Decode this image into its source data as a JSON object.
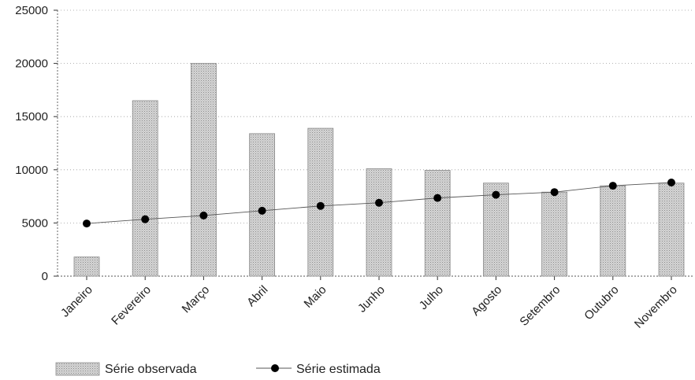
{
  "chart_data": {
    "type": "bar",
    "categories": [
      "Janeiro",
      "Fevereiro",
      "Março",
      "Abril",
      "Maio",
      "Junho",
      "Julho",
      "Agosto",
      "Setembro",
      "Outubro",
      "Novembro"
    ],
    "series": [
      {
        "name": "Série observada",
        "type": "bar",
        "color": "#c8c8c8",
        "values": [
          1800,
          16500,
          20000,
          13400,
          13900,
          10100,
          9950,
          8750,
          7900,
          8500,
          8750
        ]
      },
      {
        "name": "Série estimada",
        "type": "line",
        "color": "#000000",
        "values": [
          4950,
          5350,
          5700,
          6150,
          6600,
          6900,
          7350,
          7650,
          7900,
          8500,
          8800
        ]
      }
    ],
    "title": "",
    "xlabel": "",
    "ylabel": "",
    "ylim": [
      0,
      25000
    ],
    "yticks": [
      "0",
      "5000",
      "10000",
      "15000",
      "20000",
      "25000"
    ],
    "grid": true,
    "legend_position": "bottom-left"
  }
}
